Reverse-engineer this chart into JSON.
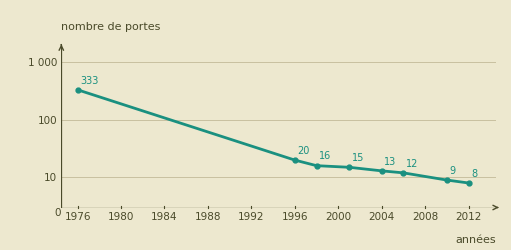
{
  "ylabel": "nombre de portes",
  "xlabel": "années",
  "background_color": "#ede8cf",
  "line_color": "#1a9080",
  "marker_color": "#1a9080",
  "text_color": "#1a9080",
  "axis_color": "#4a4a2a",
  "grid_color": "#c8c0a0",
  "tick_label_color": "#4a4a2a",
  "years": [
    1976,
    1996,
    1998,
    2001,
    2004,
    2006,
    2010,
    2012
  ],
  "values": [
    333,
    20,
    16,
    15,
    13,
    12,
    9,
    8
  ],
  "xticks": [
    1976,
    1980,
    1984,
    1988,
    1992,
    1996,
    2000,
    2004,
    2008,
    2012
  ],
  "yticks": [
    10,
    100,
    1000
  ],
  "ytick_labels": [
    "10",
    "100",
    "1 000"
  ],
  "xlim": [
    1974.5,
    2014.5
  ],
  "ylim": [
    3,
    2000
  ],
  "figsize": [
    5.11,
    2.5
  ],
  "dpi": 100,
  "annot_labels": [
    "333",
    "20",
    "16",
    "15",
    "13",
    "12",
    "9",
    "8"
  ]
}
